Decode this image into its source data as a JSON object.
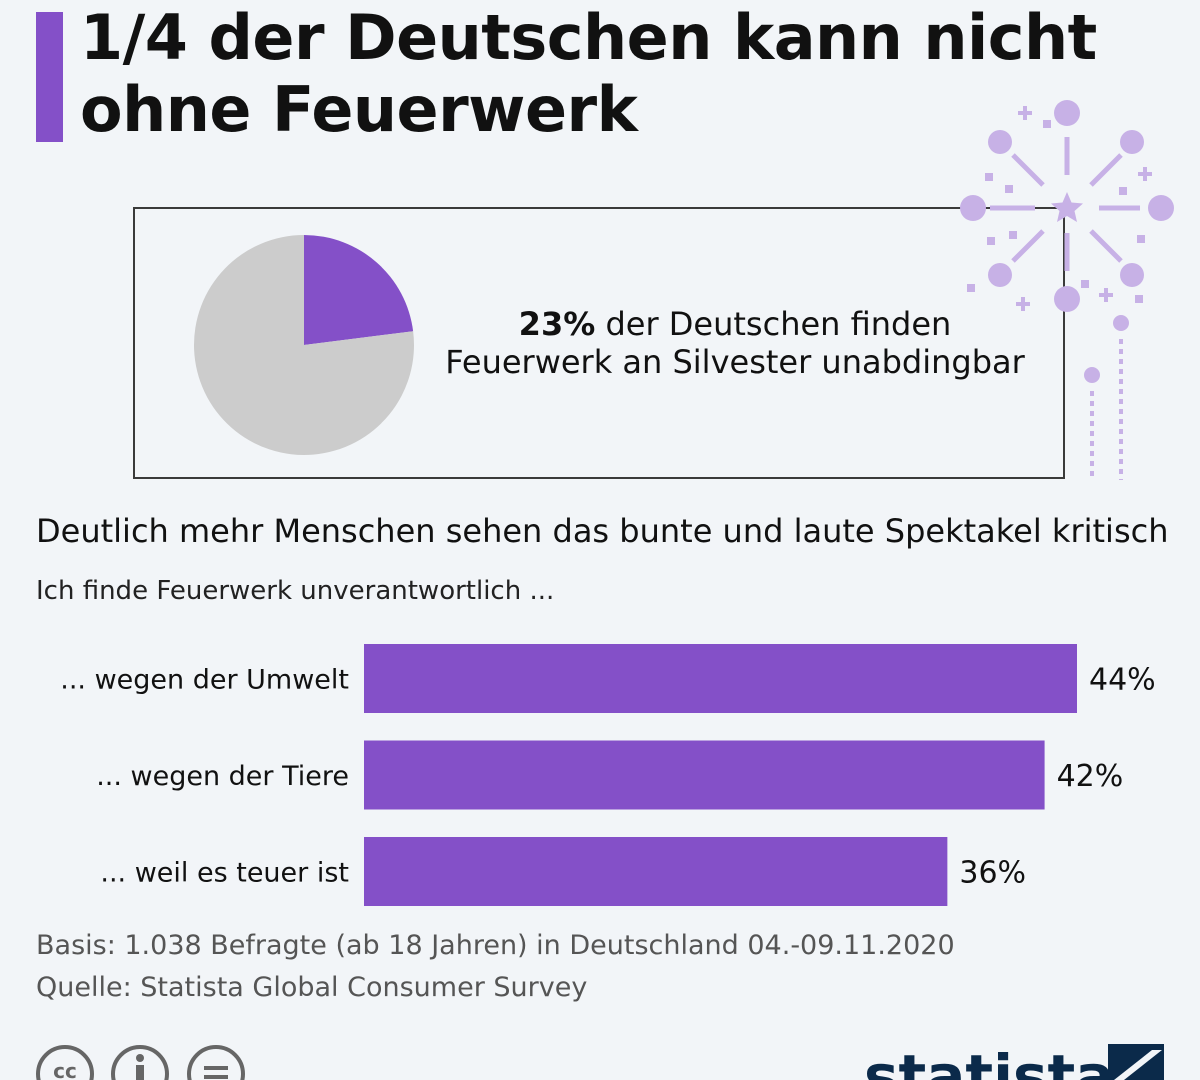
{
  "title": {
    "line1": "1/4 der Deutschen kann nicht",
    "line2": "ohne Feuerwerk"
  },
  "pie": {
    "value_label": "23%",
    "text_rest": " der Deutschen finden",
    "text_line2": "Feuerwerk an Silvester unabdingbar"
  },
  "subtitle": "Deutlich mehr Menschen sehen das bunte und laute Spektakel kritisch",
  "question": "Ich finde Feuerwerk unverantwortlich ...",
  "footer": {
    "basis": "Basis: 1.038 Befragte (ab 18 Jahren) in Deutschland 04.-09.11.2020",
    "source": "Quelle: Statista Global Consumer Survey"
  },
  "logo": {
    "text": "statista"
  },
  "icons": [
    "cc-icon",
    "info-icon",
    "equals-icon",
    "fireworks-illustration",
    "statista-logo-icon"
  ],
  "colors": {
    "accent": "#8450c8",
    "pie_rest": "#cccccc",
    "fireworks": "#c7b1e6"
  },
  "chart_data": [
    {
      "type": "pie",
      "slices": [
        {
          "label": "23%",
          "value": 23,
          "color": "#8450c8"
        },
        {
          "label": "",
          "value": 77,
          "color": "#cccccc"
        }
      ]
    },
    {
      "type": "bar",
      "orientation": "horizontal",
      "categories": [
        "... wegen der Umwelt",
        "... wegen der Tiere",
        "... weil es teuer ist"
      ],
      "values": [
        44,
        42,
        36
      ],
      "value_labels": [
        "44%",
        "42%",
        "36%"
      ],
      "xlim": [
        0,
        44
      ],
      "grid": false,
      "color": "#8450c8"
    }
  ]
}
